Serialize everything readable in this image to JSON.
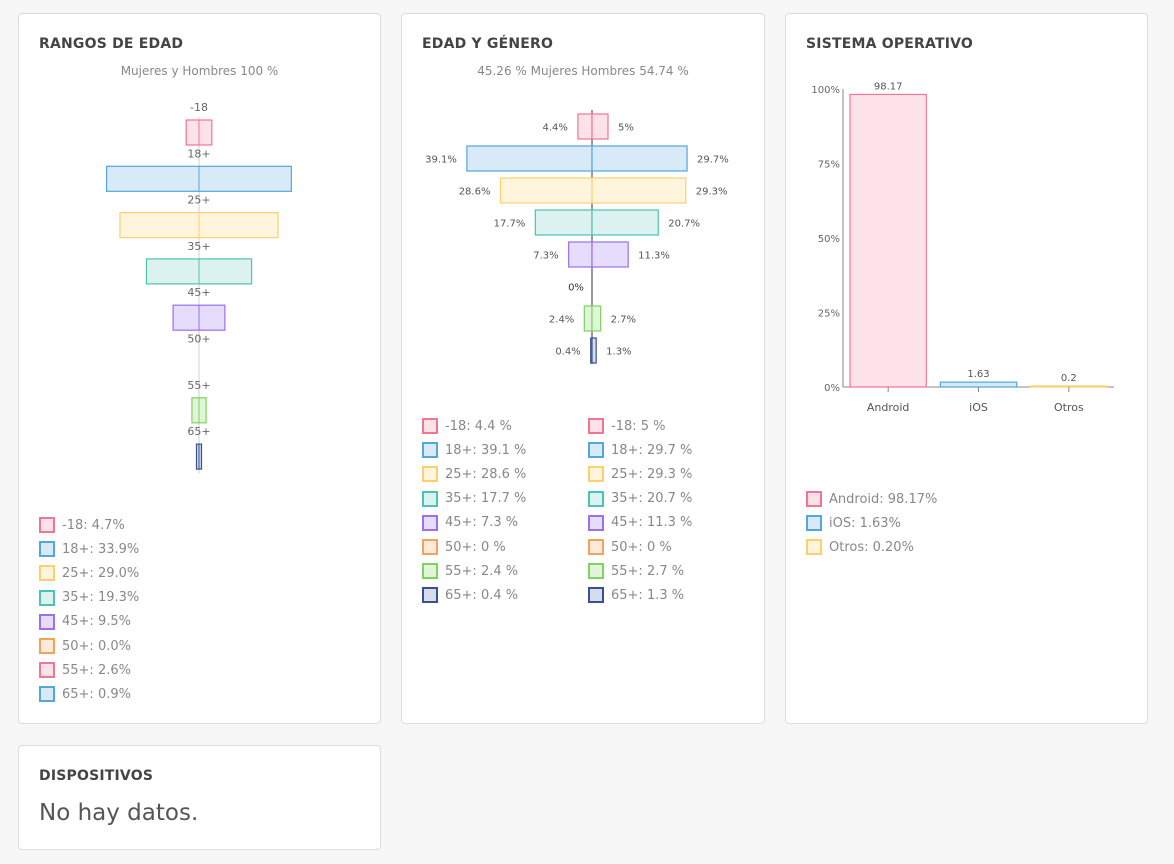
{
  "colors": {
    "c-18": {
      "fill": "#fde3e8",
      "stroke": "#f27594"
    },
    "c18": {
      "fill": "#d8eaf8",
      "stroke": "#52a7dd"
    },
    "c25": {
      "fill": "#fff4dc",
      "stroke": "#fdd06e"
    },
    "c35": {
      "fill": "#dbf2f0",
      "stroke": "#4dc1b3"
    },
    "c45": {
      "fill": "#e6dcfb",
      "stroke": "#9b6ff0"
    },
    "c50": {
      "fill": "#feead8",
      "stroke": "#f4a25a"
    },
    "c55": {
      "fill": "#e1f5d8",
      "stroke": "#7fd160"
    },
    "c65": {
      "fill": "#d6dcec",
      "stroke": "#3a4f8f"
    }
  },
  "ages": {
    "title": "RANGOS DE EDAD",
    "subtitle": "Mujeres y Hombres 100 %",
    "chart_data": {
      "type": "bar",
      "orientation": "funnel",
      "categories": [
        "-18",
        "18+",
        "25+",
        "35+",
        "45+",
        "50+",
        "55+",
        "65+"
      ],
      "values": [
        4.7,
        33.9,
        29.0,
        19.3,
        9.5,
        0.0,
        2.6,
        0.9
      ]
    },
    "legend": [
      {
        "label": "-18: 4.7%",
        "color": "c-18"
      },
      {
        "label": "18+: 33.9%",
        "color": "c18"
      },
      {
        "label": "25+: 29.0%",
        "color": "c25"
      },
      {
        "label": "35+: 19.3%",
        "color": "c35"
      },
      {
        "label": "45+: 9.5%",
        "color": "c45"
      },
      {
        "label": "50+: 0.0%",
        "color": "c50"
      },
      {
        "label": "55+: 2.6%",
        "color": "c-18"
      },
      {
        "label": "65+: 0.9%",
        "color": "c18"
      }
    ]
  },
  "gender": {
    "title": "EDAD Y GÉNERO",
    "subtitle": "45.26 % Mujeres Hombres 54.74 %",
    "chart_data": {
      "type": "bar",
      "orientation": "butterfly",
      "categories": [
        "-18",
        "18+",
        "25+",
        "35+",
        "45+",
        "50+",
        "55+",
        "65+"
      ],
      "series": [
        {
          "name": "Mujeres",
          "values": [
            4.4,
            39.1,
            28.6,
            17.7,
            7.3,
            0,
            2.4,
            0.4
          ]
        },
        {
          "name": "Hombres",
          "values": [
            5,
            29.7,
            29.3,
            20.7,
            11.3,
            0,
            2.7,
            1.3
          ]
        }
      ],
      "left_labels": [
        "4.4%",
        "39.1%",
        "28.6%",
        "17.7%",
        "7.3%",
        "0%",
        "2.4%",
        "0.4%"
      ],
      "right_labels": [
        "5%",
        "29.7%",
        "29.3%",
        "20.7%",
        "11.3%",
        "",
        "2.7%",
        "1.3%"
      ]
    },
    "legend_left": [
      {
        "label": "-18: 4.4 %",
        "color": "c-18"
      },
      {
        "label": "18+: 39.1 %",
        "color": "c18"
      },
      {
        "label": "25+: 28.6 %",
        "color": "c25"
      },
      {
        "label": "35+: 17.7 %",
        "color": "c35"
      },
      {
        "label": "45+: 7.3 %",
        "color": "c45"
      },
      {
        "label": "50+: 0 %",
        "color": "c50"
      },
      {
        "label": "55+: 2.4 %",
        "color": "c55"
      },
      {
        "label": "65+: 0.4 %",
        "color": "c65"
      }
    ],
    "legend_right": [
      {
        "label": "-18: 5 %",
        "color": "c-18"
      },
      {
        "label": "18+: 29.7 %",
        "color": "c18"
      },
      {
        "label": "25+: 29.3 %",
        "color": "c25"
      },
      {
        "label": "35+: 20.7 %",
        "color": "c35"
      },
      {
        "label": "45+: 11.3 %",
        "color": "c45"
      },
      {
        "label": "50+: 0 %",
        "color": "c50"
      },
      {
        "label": "55+: 2.7 %",
        "color": "c55"
      },
      {
        "label": "65+: 1.3 %",
        "color": "c65"
      }
    ]
  },
  "os": {
    "title": "SISTEMA OPERATIVO",
    "chart_data": {
      "type": "bar",
      "categories": [
        "Android",
        "iOS",
        "Otros"
      ],
      "values": [
        98.17,
        1.63,
        0.2
      ],
      "value_labels": [
        "98.17",
        "1.63",
        "0.2"
      ],
      "ylim": [
        0,
        100
      ],
      "yticks": [
        "0%",
        "25%",
        "50%",
        "75%",
        "100%"
      ]
    },
    "legend": [
      {
        "label": "Android: 98.17%",
        "color": "c-18"
      },
      {
        "label": "iOS: 1.63%",
        "color": "c18"
      },
      {
        "label": "Otros: 0.20%",
        "color": "c25"
      }
    ]
  },
  "devices": {
    "title": "DISPOSITIVOS",
    "empty_text": "No hay datos."
  }
}
